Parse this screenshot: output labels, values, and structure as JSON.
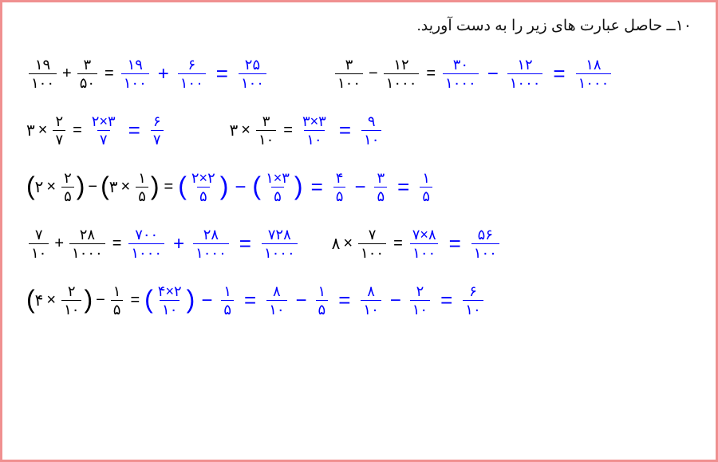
{
  "title": "١٠ــ حاصل عبارت های زیر را به دست آورید.",
  "digits": {
    "0": "٠",
    "1": "١",
    "2": "٢",
    "3": "٣",
    "4": "۴",
    "5": "۵",
    "6": "۶",
    "7": "٧",
    "8": "٨",
    "9": "٩"
  },
  "rows": [
    {
      "type": "dual",
      "left": {
        "problem": [
          {
            "t": "frac",
            "num": "١٩",
            "den": "١٠٠",
            "c": "black"
          },
          {
            "t": "op",
            "v": "+",
            "c": "black"
          },
          {
            "t": "frac",
            "num": "٣",
            "den": "۵٠",
            "c": "black"
          },
          {
            "t": "eq",
            "v": "=",
            "c": "black"
          }
        ],
        "solution": [
          {
            "t": "frac",
            "num": "١٩",
            "den": "١٠٠",
            "c": "blue"
          },
          {
            "t": "opbig",
            "v": "+",
            "c": "blue"
          },
          {
            "t": "frac",
            "num": "۶",
            "den": "١٠٠",
            "c": "blue"
          },
          {
            "t": "eqbig",
            "v": "=",
            "c": "blue"
          },
          {
            "t": "frac",
            "num": "٢۵",
            "den": "١٠٠",
            "c": "blue"
          }
        ]
      },
      "right": {
        "problem": [
          {
            "t": "frac",
            "num": "٣",
            "den": "١٠٠",
            "c": "black"
          },
          {
            "t": "op",
            "v": "−",
            "c": "black"
          },
          {
            "t": "frac",
            "num": "١٢",
            "den": "١٠٠٠",
            "c": "black"
          },
          {
            "t": "eq",
            "v": "=",
            "c": "black"
          }
        ],
        "solution": [
          {
            "t": "frac",
            "num": "٣٠",
            "den": "١٠٠٠",
            "c": "blue"
          },
          {
            "t": "opbig",
            "v": "−",
            "c": "blue"
          },
          {
            "t": "frac",
            "num": "١٢",
            "den": "١٠٠٠",
            "c": "blue"
          },
          {
            "t": "eqbig",
            "v": "=",
            "c": "blue"
          },
          {
            "t": "frac",
            "num": "١٨",
            "den": "١٠٠٠",
            "c": "blue"
          }
        ]
      }
    },
    {
      "type": "dual",
      "left": {
        "problem": [
          {
            "t": "plain",
            "v": "٣",
            "c": "black"
          },
          {
            "t": "op",
            "v": "×",
            "c": "black"
          },
          {
            "t": "frac",
            "num": "٢",
            "den": "٧",
            "c": "black"
          },
          {
            "t": "eq",
            "v": "=",
            "c": "black"
          }
        ],
        "solution": [
          {
            "t": "frac",
            "num": "٣×٢",
            "den": "٧",
            "c": "blue"
          },
          {
            "t": "eqbig",
            "v": "=",
            "c": "blue"
          },
          {
            "t": "frac",
            "num": "۶",
            "den": "٧",
            "c": "blue"
          }
        ]
      },
      "right": {
        "problem": [
          {
            "t": "plain",
            "v": "٣",
            "c": "black"
          },
          {
            "t": "op",
            "v": "×",
            "c": "black"
          },
          {
            "t": "frac",
            "num": "٣",
            "den": "١٠",
            "c": "black"
          },
          {
            "t": "eq",
            "v": "=",
            "c": "black"
          }
        ],
        "solution": [
          {
            "t": "frac",
            "num": "٣×٣",
            "den": "١٠",
            "c": "blue"
          },
          {
            "t": "eqbig",
            "v": "=",
            "c": "blue"
          },
          {
            "t": "frac",
            "num": "٩",
            "den": "١٠",
            "c": "blue"
          }
        ]
      }
    },
    {
      "type": "single",
      "content": {
        "problem": [
          {
            "t": "paren",
            "v": "(",
            "c": "black"
          },
          {
            "t": "plain",
            "v": "٢",
            "c": "black"
          },
          {
            "t": "op",
            "v": "×",
            "c": "black"
          },
          {
            "t": "frac",
            "num": "٢",
            "den": "۵",
            "c": "black"
          },
          {
            "t": "paren",
            "v": ")",
            "c": "black"
          },
          {
            "t": "op",
            "v": "−",
            "c": "black"
          },
          {
            "t": "paren",
            "v": "(",
            "c": "black"
          },
          {
            "t": "plain",
            "v": "٣",
            "c": "black"
          },
          {
            "t": "op",
            "v": "×",
            "c": "black"
          },
          {
            "t": "frac",
            "num": "١",
            "den": "۵",
            "c": "black"
          },
          {
            "t": "paren",
            "v": ")",
            "c": "black"
          },
          {
            "t": "eq",
            "v": "=",
            "c": "black"
          }
        ],
        "solution": [
          {
            "t": "paren",
            "v": "(",
            "c": "blue"
          },
          {
            "t": "frac",
            "num": "٢×٢",
            "den": "۵",
            "c": "blue"
          },
          {
            "t": "paren",
            "v": ")",
            "c": "blue"
          },
          {
            "t": "opbig",
            "v": "−",
            "c": "blue"
          },
          {
            "t": "paren",
            "v": "(",
            "c": "blue"
          },
          {
            "t": "frac",
            "num": "٣×١",
            "den": "۵",
            "c": "blue"
          },
          {
            "t": "paren",
            "v": ")",
            "c": "blue"
          },
          {
            "t": "eqbig",
            "v": "=",
            "c": "blue"
          },
          {
            "t": "frac",
            "num": "۴",
            "den": "۵",
            "c": "blue"
          },
          {
            "t": "opbig",
            "v": "−",
            "c": "blue"
          },
          {
            "t": "frac",
            "num": "٣",
            "den": "۵",
            "c": "blue"
          },
          {
            "t": "eqbig",
            "v": "=",
            "c": "blue"
          },
          {
            "t": "frac",
            "num": "١",
            "den": "۵",
            "c": "blue"
          }
        ]
      }
    },
    {
      "type": "dual",
      "left": {
        "problem": [
          {
            "t": "frac",
            "num": "٧",
            "den": "١٠",
            "c": "black"
          },
          {
            "t": "op",
            "v": "+",
            "c": "black"
          },
          {
            "t": "frac",
            "num": "٢٨",
            "den": "١٠٠٠",
            "c": "black"
          },
          {
            "t": "eq",
            "v": "=",
            "c": "black"
          }
        ],
        "solution": [
          {
            "t": "frac",
            "num": "٧٠٠",
            "den": "١٠٠٠",
            "c": "blue"
          },
          {
            "t": "opbig",
            "v": "+",
            "c": "blue"
          },
          {
            "t": "frac",
            "num": "٢٨",
            "den": "١٠٠٠",
            "c": "blue"
          },
          {
            "t": "eqbig",
            "v": "=",
            "c": "blue"
          },
          {
            "t": "frac",
            "num": "٧٢٨",
            "den": "١٠٠٠",
            "c": "blue"
          }
        ]
      },
      "right": {
        "problem": [
          {
            "t": "plain",
            "v": "٨",
            "c": "black"
          },
          {
            "t": "op",
            "v": "×",
            "c": "black"
          },
          {
            "t": "frac",
            "num": "٧",
            "den": "١٠٠",
            "c": "black"
          },
          {
            "t": "eq",
            "v": "=",
            "c": "black"
          }
        ],
        "solution": [
          {
            "t": "frac",
            "num": "٨×٧",
            "den": "١٠٠",
            "c": "blue"
          },
          {
            "t": "eqbig",
            "v": "=",
            "c": "blue"
          },
          {
            "t": "frac",
            "num": "۵۶",
            "den": "١٠٠",
            "c": "blue"
          }
        ]
      }
    },
    {
      "type": "single",
      "content": {
        "problem": [
          {
            "t": "paren",
            "v": "(",
            "c": "black"
          },
          {
            "t": "plain",
            "v": "۴",
            "c": "black"
          },
          {
            "t": "op",
            "v": "×",
            "c": "black"
          },
          {
            "t": "frac",
            "num": "٢",
            "den": "١٠",
            "c": "black"
          },
          {
            "t": "paren",
            "v": ")",
            "c": "black"
          },
          {
            "t": "op",
            "v": "−",
            "c": "black"
          },
          {
            "t": "frac",
            "num": "١",
            "den": "۵",
            "c": "black"
          },
          {
            "t": "eq",
            "v": "=",
            "c": "black"
          }
        ],
        "solution": [
          {
            "t": "paren",
            "v": "(",
            "c": "blue"
          },
          {
            "t": "frac",
            "num": "۴×٢",
            "den": "١٠",
            "c": "blue"
          },
          {
            "t": "paren",
            "v": ")",
            "c": "blue"
          },
          {
            "t": "opbig",
            "v": "−",
            "c": "blue"
          },
          {
            "t": "frac",
            "num": "١",
            "den": "۵",
            "c": "blue"
          },
          {
            "t": "eqbig",
            "v": "=",
            "c": "blue"
          },
          {
            "t": "frac",
            "num": "٨",
            "den": "١٠",
            "c": "blue"
          },
          {
            "t": "opbig",
            "v": "−",
            "c": "blue"
          },
          {
            "t": "frac",
            "num": "١",
            "den": "۵",
            "c": "blue"
          },
          {
            "t": "eqbig",
            "v": "=",
            "c": "blue"
          },
          {
            "t": "frac",
            "num": "٨",
            "den": "١٠",
            "c": "blue"
          },
          {
            "t": "opbig",
            "v": "−",
            "c": "blue"
          },
          {
            "t": "frac",
            "num": "٢",
            "den": "١٠",
            "c": "blue"
          },
          {
            "t": "eqbig",
            "v": "=",
            "c": "blue"
          },
          {
            "t": "frac",
            "num": "۶",
            "den": "١٠",
            "c": "blue"
          }
        ]
      }
    }
  ]
}
